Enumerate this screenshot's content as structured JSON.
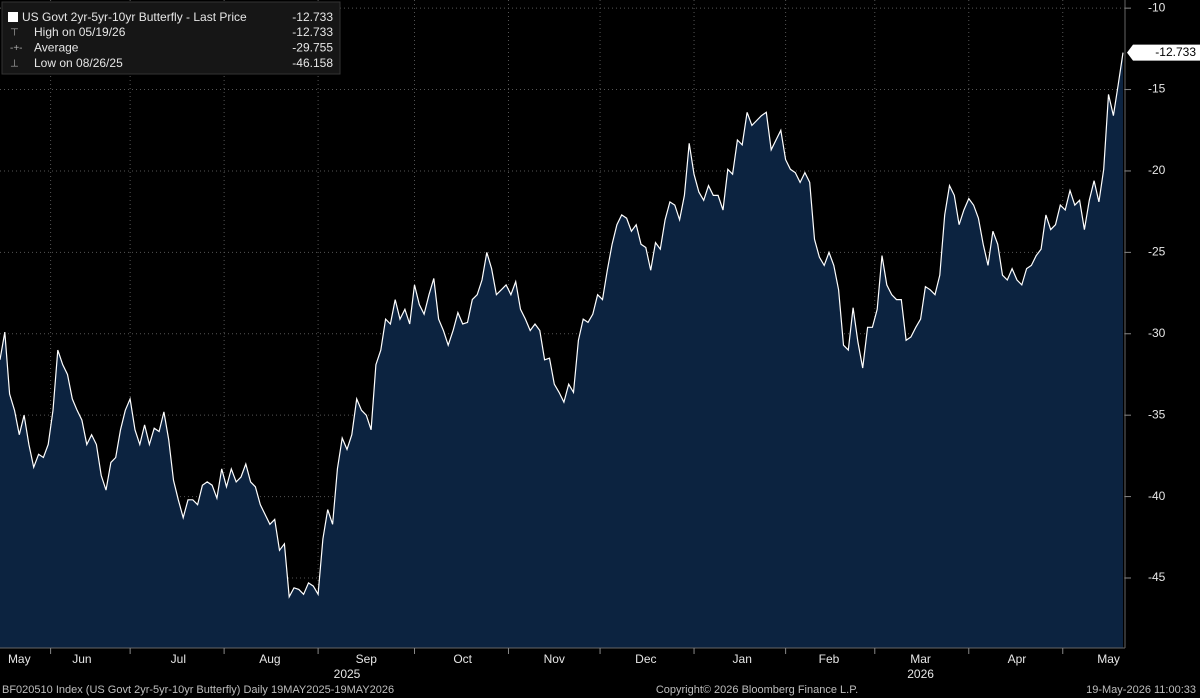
{
  "chart_data": {
    "type": "area",
    "categories": [
      null,
      null,
      null,
      null,
      "May",
      null,
      null,
      null,
      null,
      null,
      null,
      null,
      null,
      null,
      null,
      null,
      null,
      "Jun",
      null,
      null,
      null,
      null,
      null,
      null,
      null,
      null,
      null,
      null,
      null,
      null,
      null,
      null,
      null,
      null,
      null,
      null,
      null,
      "Jul",
      null,
      null,
      null,
      null,
      null,
      null,
      null,
      null,
      null,
      null,
      null,
      null,
      null,
      null,
      null,
      null,
      null,
      null,
      "Aug",
      null,
      null,
      null,
      null,
      null,
      null,
      null,
      null,
      null,
      null,
      null,
      null,
      null,
      null,
      null,
      null,
      null,
      null,
      null,
      "Sep",
      null,
      null,
      null,
      null,
      null,
      null,
      null,
      null,
      null,
      null,
      null,
      null,
      null,
      null,
      null,
      null,
      null,
      null,
      null,
      "Oct",
      null,
      null,
      null,
      null,
      null,
      null,
      null,
      null,
      null,
      null,
      null,
      null,
      null,
      null,
      null,
      null,
      null,
      null,
      "Nov",
      null,
      null,
      null,
      null,
      null,
      null,
      null,
      null,
      null,
      null,
      null,
      null,
      null,
      null,
      null,
      null,
      null,
      null,
      "Dec",
      null,
      null,
      null,
      null,
      null,
      null,
      null,
      null,
      null,
      null,
      null,
      null,
      null,
      null,
      null,
      null,
      null,
      null,
      null,
      "Jan",
      null,
      null,
      null,
      null,
      null,
      null,
      null,
      null,
      null,
      null,
      null,
      null,
      null,
      null,
      null,
      null,
      null,
      "Feb",
      null,
      null,
      null,
      null,
      null,
      null,
      null,
      null,
      null,
      null,
      null,
      null,
      null,
      null,
      null,
      null,
      null,
      null,
      "Mar",
      null,
      null,
      null,
      null,
      null,
      null,
      null,
      null,
      null,
      null,
      null,
      null,
      null,
      null,
      null,
      null,
      null,
      null,
      null,
      "Apr",
      null,
      null,
      null,
      null,
      null,
      null,
      null,
      null,
      null,
      null,
      null,
      null,
      null,
      null,
      null,
      null,
      null,
      null,
      "May",
      null,
      null,
      null
    ],
    "category_years": [
      null,
      null,
      null,
      null,
      null,
      null,
      null,
      null,
      null,
      null,
      null,
      null,
      null,
      null,
      null,
      null,
      null,
      null,
      null,
      null,
      null,
      null,
      null,
      null,
      null,
      null,
      null,
      null,
      null,
      null,
      null,
      null,
      null,
      null,
      null,
      null,
      null,
      null,
      null,
      null,
      null,
      null,
      null,
      null,
      null,
      null,
      null,
      null,
      null,
      null,
      null,
      null,
      null,
      null,
      null,
      null,
      null,
      null,
      null,
      null,
      null,
      null,
      null,
      null,
      null,
      null,
      null,
      null,
      null,
      null,
      null,
      null,
      "2025",
      null,
      null,
      null,
      null,
      null,
      null,
      null,
      null,
      null,
      null,
      null,
      null,
      null,
      null,
      null,
      null,
      null,
      null,
      null,
      null,
      null,
      null,
      null,
      null,
      null,
      null,
      null,
      null,
      null,
      null,
      null,
      null,
      null,
      null,
      null,
      null,
      null,
      null,
      null,
      null,
      null,
      null,
      null,
      null,
      null,
      null,
      null,
      null,
      null,
      null,
      null,
      null,
      null,
      null,
      null,
      null,
      null,
      null,
      null,
      null,
      null,
      null,
      null,
      null,
      null,
      null,
      null,
      null,
      null,
      null,
      null,
      null,
      null,
      null,
      null,
      null,
      null,
      null,
      null,
      null,
      null,
      null,
      null,
      null,
      null,
      null,
      null,
      null,
      null,
      null,
      null,
      null,
      null,
      null,
      null,
      null,
      null,
      null,
      null,
      null,
      null,
      null,
      null,
      null,
      null,
      null,
      null,
      null,
      null,
      null,
      null,
      null,
      null,
      null,
      null,
      null,
      null,
      null,
      "2026",
      null,
      null,
      null,
      null,
      null,
      null,
      null,
      null,
      null,
      null,
      null,
      null,
      null,
      null,
      null,
      null,
      null,
      null,
      null,
      null,
      null,
      null,
      null,
      null,
      null,
      null,
      null,
      null,
      null,
      null,
      null,
      null,
      null,
      null,
      null,
      null,
      null,
      null,
      null,
      null,
      null,
      null
    ],
    "series": [
      {
        "name": "US Govt 2yr-5yr-10yr Butterfly - Last Price",
        "color": "#ffffff",
        "fill": "#0c2340",
        "values": [
          -31.6,
          -29.9,
          -33.7,
          -34.7,
          -36.2,
          -35.0,
          -36.8,
          -38.2,
          -37.4,
          -37.6,
          -36.8,
          -34.7,
          -31.0,
          -31.9,
          -32.5,
          -34.0,
          -34.7,
          -35.3,
          -36.8,
          -36.2,
          -36.8,
          -38.7,
          -39.6,
          -37.9,
          -37.6,
          -35.9,
          -34.7,
          -34.0,
          -35.9,
          -36.8,
          -35.6,
          -36.8,
          -35.8,
          -36.0,
          -34.8,
          -36.5,
          -39.0,
          -40.2,
          -41.3,
          -40.2,
          -40.2,
          -40.5,
          -39.3,
          -39.1,
          -39.3,
          -40.1,
          -38.3,
          -39.4,
          -38.3,
          -39.1,
          -38.8,
          -38.0,
          -39.1,
          -39.4,
          -40.5,
          -41.1,
          -41.7,
          -41.4,
          -43.3,
          -42.9,
          -46.158,
          -45.6,
          -45.7,
          -46.0,
          -45.3,
          -45.5,
          -46.0,
          -42.6,
          -40.8,
          -41.7,
          -38.3,
          -36.4,
          -37.1,
          -36.2,
          -34.0,
          -34.7,
          -35.0,
          -35.9,
          -31.9,
          -31.0,
          -29.1,
          -29.4,
          -27.9,
          -29.1,
          -28.5,
          -29.4,
          -27.0,
          -28.2,
          -28.8,
          -27.6,
          -26.6,
          -29.1,
          -29.8,
          -30.7,
          -29.8,
          -28.7,
          -29.4,
          -29.3,
          -27.9,
          -27.6,
          -26.7,
          -25.0,
          -26.0,
          -27.6,
          -27.3,
          -27.0,
          -27.6,
          -26.8,
          -28.5,
          -29.1,
          -29.8,
          -29.4,
          -29.8,
          -31.6,
          -31.5,
          -33.1,
          -33.6,
          -34.2,
          -33.1,
          -33.6,
          -30.4,
          -29.1,
          -29.3,
          -28.8,
          -27.6,
          -27.9,
          -26.1,
          -24.5,
          -23.3,
          -22.7,
          -22.9,
          -23.7,
          -23.3,
          -24.5,
          -24.7,
          -26.1,
          -24.4,
          -24.8,
          -23.0,
          -21.9,
          -22.1,
          -23.0,
          -21.5,
          -18.3,
          -20.2,
          -21.3,
          -21.8,
          -20.9,
          -21.5,
          -21.5,
          -22.4,
          -19.9,
          -20.2,
          -18.1,
          -18.4,
          -16.4,
          -17.2,
          -16.9,
          -16.6,
          -16.4,
          -18.7,
          -18.1,
          -17.5,
          -19.3,
          -19.9,
          -20.1,
          -20.7,
          -20.1,
          -20.7,
          -24.2,
          -25.3,
          -25.8,
          -25.0,
          -25.8,
          -27.3,
          -30.7,
          -31.0,
          -28.4,
          -30.5,
          -32.1,
          -29.6,
          -29.6,
          -28.5,
          -25.2,
          -27.0,
          -27.6,
          -27.9,
          -27.9,
          -30.4,
          -30.2,
          -29.6,
          -29.1,
          -27.1,
          -27.3,
          -27.6,
          -26.4,
          -22.7,
          -20.9,
          -21.5,
          -23.3,
          -22.4,
          -21.7,
          -22.1,
          -22.9,
          -24.5,
          -25.8,
          -23.7,
          -24.5,
          -26.4,
          -26.7,
          -26.0,
          -26.7,
          -27.0,
          -26.0,
          -25.8,
          -25.2,
          -24.8,
          -22.7,
          -23.6,
          -23.3,
          -22.1,
          -22.4,
          -21.2,
          -22.1,
          -21.8,
          -23.6,
          -21.8,
          -20.6,
          -21.9,
          -19.9,
          -15.3,
          -16.6,
          -14.7,
          -12.733
        ]
      }
    ],
    "ylim": [
      -49.3,
      -9.5
    ],
    "yticks": [
      -10,
      -15,
      -20,
      -25,
      -30,
      -35,
      -40,
      -45
    ],
    "grid": true,
    "legend": {
      "last": -12.733,
      "rows": [
        {
          "label": "High on 05/19/26",
          "value": -12.733
        },
        {
          "label": "Average",
          "value": -29.755
        },
        {
          "label": "Low on 08/26/25",
          "value": -46.158
        }
      ]
    },
    "footer": {
      "left": "BF020510 Index (US Govt 2yr-5yr-10yr Butterfly) Daily 19MAY2025-19MAY2026",
      "center": "Copyright© 2026 Bloomberg Finance L.P.",
      "right": "19-May-2026 11:00:33"
    }
  }
}
